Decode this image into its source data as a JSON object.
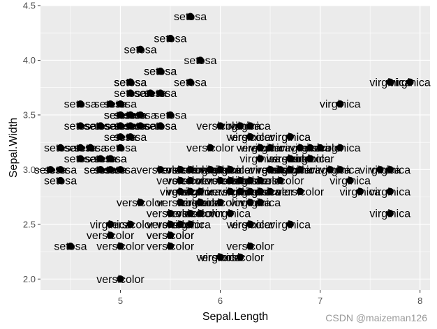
{
  "chart_data": {
    "type": "scatter",
    "xlabel": "Sepal.Length",
    "ylabel": "Sepal.Width",
    "xlim": [
      4.2,
      8.1
    ],
    "ylim": [
      1.9,
      4.5
    ],
    "xticks": [
      "5",
      "6",
      "7",
      "8"
    ],
    "xtick_values": [
      5,
      6,
      7,
      8
    ],
    "yticks": [
      "2.0",
      "2.5",
      "3.0",
      "3.5",
      "4.0",
      "4.5"
    ],
    "ytick_values": [
      2.0,
      2.5,
      3.0,
      3.5,
      4.0,
      4.5
    ],
    "grid": true,
    "panel_color": "#EBEBEB",
    "grid_color": "#FFFFFF",
    "point_color": "#000000",
    "points": [
      {
        "x": 5.1,
        "y": 3.5,
        "label": "setosa"
      },
      {
        "x": 4.9,
        "y": 3.0,
        "label": "setosa"
      },
      {
        "x": 4.7,
        "y": 3.2,
        "label": "setosa"
      },
      {
        "x": 4.6,
        "y": 3.1,
        "label": "setosa"
      },
      {
        "x": 5.0,
        "y": 3.6,
        "label": "setosa"
      },
      {
        "x": 5.4,
        "y": 3.9,
        "label": "setosa"
      },
      {
        "x": 4.6,
        "y": 3.4,
        "label": "setosa"
      },
      {
        "x": 5.0,
        "y": 3.4,
        "label": "setosa"
      },
      {
        "x": 4.4,
        "y": 2.9,
        "label": "setosa"
      },
      {
        "x": 4.9,
        "y": 3.1,
        "label": "setosa"
      },
      {
        "x": 5.4,
        "y": 3.7,
        "label": "setosa"
      },
      {
        "x": 4.8,
        "y": 3.4,
        "label": "setosa"
      },
      {
        "x": 4.8,
        "y": 3.0,
        "label": "setosa"
      },
      {
        "x": 4.3,
        "y": 3.0,
        "label": "setosa"
      },
      {
        "x": 5.8,
        "y": 4.0,
        "label": "setosa"
      },
      {
        "x": 5.7,
        "y": 4.4,
        "label": "setosa"
      },
      {
        "x": 5.4,
        "y": 3.9,
        "label": "setosa"
      },
      {
        "x": 5.1,
        "y": 3.5,
        "label": "setosa"
      },
      {
        "x": 5.7,
        "y": 3.8,
        "label": "setosa"
      },
      {
        "x": 5.1,
        "y": 3.8,
        "label": "setosa"
      },
      {
        "x": 5.4,
        "y": 3.4,
        "label": "setosa"
      },
      {
        "x": 5.1,
        "y": 3.7,
        "label": "setosa"
      },
      {
        "x": 4.6,
        "y": 3.6,
        "label": "setosa"
      },
      {
        "x": 5.1,
        "y": 3.3,
        "label": "setosa"
      },
      {
        "x": 4.8,
        "y": 3.4,
        "label": "setosa"
      },
      {
        "x": 5.0,
        "y": 3.0,
        "label": "setosa"
      },
      {
        "x": 5.0,
        "y": 3.4,
        "label": "setosa"
      },
      {
        "x": 5.2,
        "y": 3.5,
        "label": "setosa"
      },
      {
        "x": 5.2,
        "y": 3.4,
        "label": "setosa"
      },
      {
        "x": 4.7,
        "y": 3.2,
        "label": "setosa"
      },
      {
        "x": 4.8,
        "y": 3.1,
        "label": "setosa"
      },
      {
        "x": 5.4,
        "y": 3.4,
        "label": "setosa"
      },
      {
        "x": 5.2,
        "y": 4.1,
        "label": "setosa"
      },
      {
        "x": 5.5,
        "y": 4.2,
        "label": "setosa"
      },
      {
        "x": 4.9,
        "y": 3.1,
        "label": "setosa"
      },
      {
        "x": 5.0,
        "y": 3.2,
        "label": "setosa"
      },
      {
        "x": 5.5,
        "y": 3.5,
        "label": "setosa"
      },
      {
        "x": 4.9,
        "y": 3.6,
        "label": "setosa"
      },
      {
        "x": 4.4,
        "y": 3.0,
        "label": "setosa"
      },
      {
        "x": 5.1,
        "y": 3.4,
        "label": "setosa"
      },
      {
        "x": 5.0,
        "y": 3.5,
        "label": "setosa"
      },
      {
        "x": 4.5,
        "y": 2.3,
        "label": "setosa"
      },
      {
        "x": 4.4,
        "y": 3.2,
        "label": "setosa"
      },
      {
        "x": 5.0,
        "y": 3.5,
        "label": "setosa"
      },
      {
        "x": 5.1,
        "y": 3.8,
        "label": "setosa"
      },
      {
        "x": 4.8,
        "y": 3.0,
        "label": "setosa"
      },
      {
        "x": 5.1,
        "y": 3.8,
        "label": "setosa"
      },
      {
        "x": 4.6,
        "y": 3.2,
        "label": "setosa"
      },
      {
        "x": 5.3,
        "y": 3.7,
        "label": "setosa"
      },
      {
        "x": 5.0,
        "y": 3.3,
        "label": "setosa"
      },
      {
        "x": 7.0,
        "y": 3.2,
        "label": "versicolor"
      },
      {
        "x": 6.4,
        "y": 3.2,
        "label": "versicolor"
      },
      {
        "x": 6.9,
        "y": 3.1,
        "label": "versicolor"
      },
      {
        "x": 5.5,
        "y": 2.3,
        "label": "versicolor"
      },
      {
        "x": 6.5,
        "y": 2.8,
        "label": "versicolor"
      },
      {
        "x": 5.7,
        "y": 2.8,
        "label": "versicolor"
      },
      {
        "x": 6.3,
        "y": 3.3,
        "label": "versicolor"
      },
      {
        "x": 4.9,
        "y": 2.4,
        "label": "versicolor"
      },
      {
        "x": 6.6,
        "y": 2.9,
        "label": "versicolor"
      },
      {
        "x": 5.2,
        "y": 2.7,
        "label": "versicolor"
      },
      {
        "x": 5.0,
        "y": 2.0,
        "label": "versicolor"
      },
      {
        "x": 5.9,
        "y": 3.0,
        "label": "versicolor"
      },
      {
        "x": 6.0,
        "y": 2.2,
        "label": "versicolor"
      },
      {
        "x": 6.1,
        "y": 2.9,
        "label": "versicolor"
      },
      {
        "x": 5.6,
        "y": 2.9,
        "label": "versicolor"
      },
      {
        "x": 6.7,
        "y": 3.1,
        "label": "versicolor"
      },
      {
        "x": 5.6,
        "y": 3.0,
        "label": "versicolor"
      },
      {
        "x": 5.8,
        "y": 2.7,
        "label": "versicolor"
      },
      {
        "x": 6.2,
        "y": 2.2,
        "label": "versicolor"
      },
      {
        "x": 5.6,
        "y": 2.5,
        "label": "versicolor"
      },
      {
        "x": 5.9,
        "y": 3.2,
        "label": "versicolor"
      },
      {
        "x": 6.1,
        "y": 2.8,
        "label": "versicolor"
      },
      {
        "x": 6.3,
        "y": 2.5,
        "label": "versicolor"
      },
      {
        "x": 6.1,
        "y": 2.8,
        "label": "versicolor"
      },
      {
        "x": 6.4,
        "y": 2.9,
        "label": "versicolor"
      },
      {
        "x": 6.6,
        "y": 3.0,
        "label": "versicolor"
      },
      {
        "x": 6.8,
        "y": 2.8,
        "label": "versicolor"
      },
      {
        "x": 6.7,
        "y": 3.0,
        "label": "versicolor"
      },
      {
        "x": 6.0,
        "y": 2.9,
        "label": "versicolor"
      },
      {
        "x": 5.7,
        "y": 2.6,
        "label": "versicolor"
      },
      {
        "x": 5.5,
        "y": 2.4,
        "label": "versicolor"
      },
      {
        "x": 5.5,
        "y": 2.4,
        "label": "versicolor"
      },
      {
        "x": 5.8,
        "y": 2.7,
        "label": "versicolor"
      },
      {
        "x": 6.0,
        "y": 2.7,
        "label": "versicolor"
      },
      {
        "x": 5.4,
        "y": 3.0,
        "label": "versicolor"
      },
      {
        "x": 6.0,
        "y": 3.4,
        "label": "versicolor"
      },
      {
        "x": 6.7,
        "y": 3.1,
        "label": "versicolor"
      },
      {
        "x": 6.3,
        "y": 2.3,
        "label": "versicolor"
      },
      {
        "x": 5.6,
        "y": 3.0,
        "label": "versicolor"
      },
      {
        "x": 5.5,
        "y": 2.5,
        "label": "versicolor"
      },
      {
        "x": 5.5,
        "y": 2.6,
        "label": "versicolor"
      },
      {
        "x": 6.1,
        "y": 3.0,
        "label": "versicolor"
      },
      {
        "x": 5.8,
        "y": 2.6,
        "label": "versicolor"
      },
      {
        "x": 5.0,
        "y": 2.3,
        "label": "versicolor"
      },
      {
        "x": 5.6,
        "y": 2.7,
        "label": "versicolor"
      },
      {
        "x": 5.7,
        "y": 3.0,
        "label": "versicolor"
      },
      {
        "x": 5.7,
        "y": 2.9,
        "label": "versicolor"
      },
      {
        "x": 6.2,
        "y": 2.9,
        "label": "versicolor"
      },
      {
        "x": 5.1,
        "y": 2.5,
        "label": "versicolor"
      },
      {
        "x": 5.7,
        "y": 2.8,
        "label": "versicolor"
      },
      {
        "x": 6.3,
        "y": 3.3,
        "label": "virginica"
      },
      {
        "x": 5.8,
        "y": 2.7,
        "label": "virginica"
      },
      {
        "x": 7.1,
        "y": 3.0,
        "label": "virginica"
      },
      {
        "x": 6.3,
        "y": 2.9,
        "label": "virginica"
      },
      {
        "x": 6.5,
        "y": 3.0,
        "label": "virginica"
      },
      {
        "x": 7.6,
        "y": 3.0,
        "label": "virginica"
      },
      {
        "x": 4.9,
        "y": 2.5,
        "label": "virginica"
      },
      {
        "x": 7.3,
        "y": 2.9,
        "label": "virginica"
      },
      {
        "x": 6.7,
        "y": 2.5,
        "label": "virginica"
      },
      {
        "x": 7.2,
        "y": 3.6,
        "label": "virginica"
      },
      {
        "x": 6.5,
        "y": 3.2,
        "label": "virginica"
      },
      {
        "x": 6.4,
        "y": 2.7,
        "label": "virginica"
      },
      {
        "x": 6.8,
        "y": 3.0,
        "label": "virginica"
      },
      {
        "x": 5.7,
        "y": 2.5,
        "label": "virginica"
      },
      {
        "x": 5.8,
        "y": 2.8,
        "label": "virginica"
      },
      {
        "x": 6.4,
        "y": 3.2,
        "label": "virginica"
      },
      {
        "x": 6.5,
        "y": 3.0,
        "label": "virginica"
      },
      {
        "x": 7.7,
        "y": 3.8,
        "label": "virginica"
      },
      {
        "x": 7.7,
        "y": 2.6,
        "label": "virginica"
      },
      {
        "x": 6.0,
        "y": 2.2,
        "label": "virginica"
      },
      {
        "x": 6.9,
        "y": 3.2,
        "label": "virginica"
      },
      {
        "x": 5.6,
        "y": 2.8,
        "label": "virginica"
      },
      {
        "x": 7.7,
        "y": 2.8,
        "label": "virginica"
      },
      {
        "x": 6.3,
        "y": 2.7,
        "label": "virginica"
      },
      {
        "x": 6.7,
        "y": 3.3,
        "label": "virginica"
      },
      {
        "x": 7.2,
        "y": 3.2,
        "label": "virginica"
      },
      {
        "x": 6.2,
        "y": 2.8,
        "label": "virginica"
      },
      {
        "x": 6.1,
        "y": 3.0,
        "label": "virginica"
      },
      {
        "x": 6.4,
        "y": 2.8,
        "label": "virginica"
      },
      {
        "x": 7.2,
        "y": 3.0,
        "label": "virginica"
      },
      {
        "x": 7.4,
        "y": 2.8,
        "label": "virginica"
      },
      {
        "x": 7.9,
        "y": 3.8,
        "label": "virginica"
      },
      {
        "x": 6.4,
        "y": 2.8,
        "label": "virginica"
      },
      {
        "x": 6.3,
        "y": 2.8,
        "label": "virginica"
      },
      {
        "x": 6.1,
        "y": 2.6,
        "label": "virginica"
      },
      {
        "x": 7.7,
        "y": 3.0,
        "label": "virginica"
      },
      {
        "x": 6.3,
        "y": 3.4,
        "label": "virginica"
      },
      {
        "x": 6.4,
        "y": 3.1,
        "label": "virginica"
      },
      {
        "x": 6.0,
        "y": 3.0,
        "label": "virginica"
      },
      {
        "x": 6.9,
        "y": 3.1,
        "label": "virginica"
      },
      {
        "x": 6.7,
        "y": 3.1,
        "label": "virginica"
      },
      {
        "x": 6.9,
        "y": 3.1,
        "label": "virginica"
      },
      {
        "x": 5.8,
        "y": 2.7,
        "label": "virginica"
      },
      {
        "x": 6.8,
        "y": 3.2,
        "label": "virginica"
      },
      {
        "x": 6.7,
        "y": 3.3,
        "label": "virginica"
      },
      {
        "x": 6.7,
        "y": 3.0,
        "label": "virginica"
      },
      {
        "x": 6.3,
        "y": 2.5,
        "label": "virginica"
      },
      {
        "x": 6.5,
        "y": 3.0,
        "label": "virginica"
      },
      {
        "x": 6.2,
        "y": 3.4,
        "label": "virginica"
      },
      {
        "x": 5.9,
        "y": 3.0,
        "label": "virginica"
      }
    ]
  },
  "watermark": "CSDN @maizeman126"
}
